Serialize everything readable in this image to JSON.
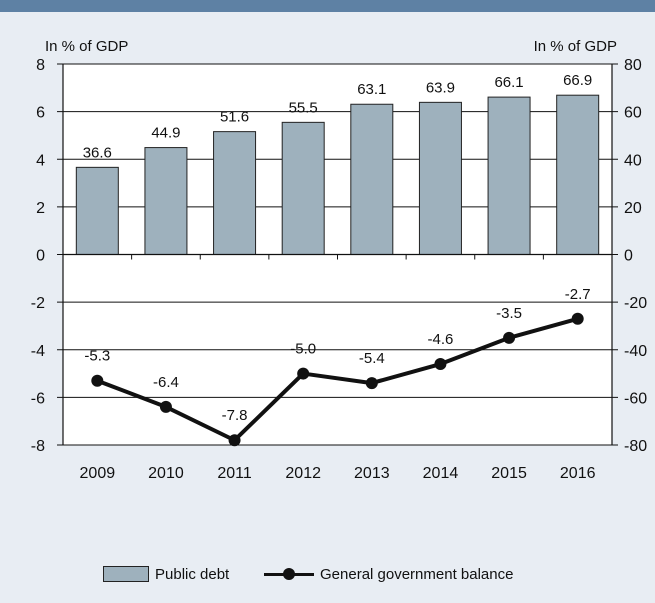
{
  "chart_data": {
    "type": "bar",
    "categories": [
      "2009",
      "2010",
      "2011",
      "2012",
      "2013",
      "2014",
      "2015",
      "2016"
    ],
    "series": [
      {
        "name": "Public debt",
        "kind": "bar",
        "axis": "right",
        "values": [
          36.6,
          44.9,
          51.6,
          55.5,
          63.1,
          63.9,
          66.1,
          66.9
        ],
        "labels": [
          "36.6",
          "44.9",
          "51.6",
          "55.5",
          "63.1",
          "63.9",
          "66.1",
          "66.9"
        ]
      },
      {
        "name": "General government balance",
        "kind": "line",
        "axis": "left",
        "values": [
          -5.3,
          -6.4,
          -7.8,
          -5.0,
          -5.4,
          -4.6,
          -3.5,
          -2.7
        ],
        "labels": [
          "-5.3",
          "-6.4",
          "-7.8",
          "-5.0",
          "-5.4",
          "-4.6",
          "-3.5",
          "-2.7"
        ]
      }
    ],
    "left_axis": {
      "label": "In % of GDP",
      "ylim": [
        -8,
        8
      ],
      "ticks": [
        "8",
        "6",
        "4",
        "2",
        "0",
        "-2",
        "-4",
        "-6",
        "-8"
      ]
    },
    "right_axis": {
      "label": "In % of GDP",
      "ylim": [
        -80,
        80
      ],
      "ticks": [
        "80",
        "60",
        "40",
        "20",
        "0",
        "-20",
        "-40",
        "-60",
        "-80"
      ]
    },
    "grid": true,
    "legend_position": "bottom",
    "colors": {
      "bar": "#9eb1bd",
      "line": "#111111",
      "background": "#e8edf3",
      "header": "#5e81a4"
    }
  }
}
